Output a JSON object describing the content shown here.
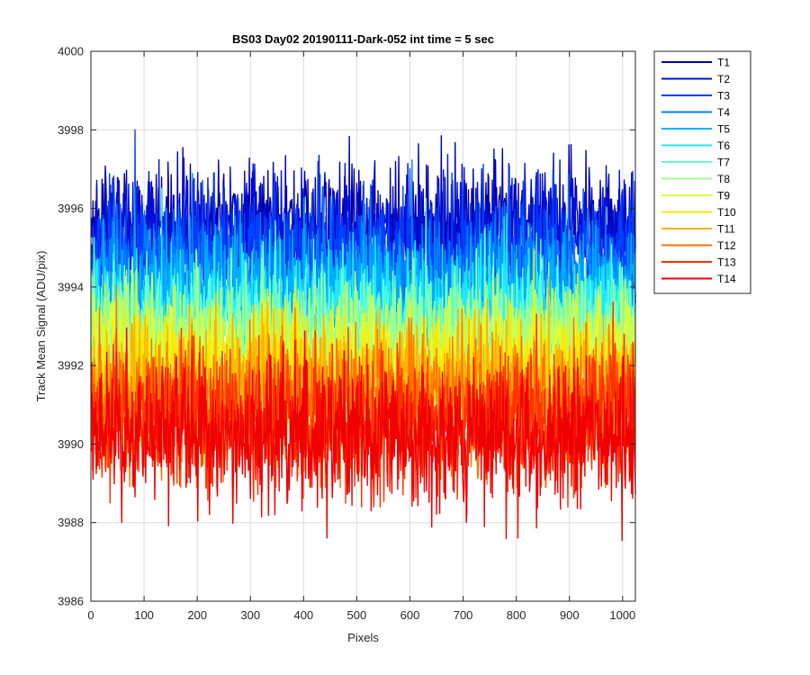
{
  "chart_data": {
    "type": "line",
    "title": "BS03 Day02 20190111-Dark-052 int time = 5 sec",
    "xlabel": "Pixels",
    "ylabel": "Track Mean Signal (ADU/pix)",
    "xlim": [
      0,
      1024
    ],
    "ylim": [
      3986,
      4000
    ],
    "xticks": [
      0,
      100,
      200,
      300,
      400,
      500,
      600,
      700,
      800,
      900,
      1000
    ],
    "yticks": [
      3986,
      3988,
      3990,
      3992,
      3994,
      3996,
      3998,
      4000
    ],
    "grid": true,
    "legend_position": "outside-top-right",
    "noise_note": "Each series is a noisy dark-frame trace over 1024 pixels; values summarized by mean and spread.",
    "series": [
      {
        "name": "T1",
        "color": "#0000b0",
        "mean": 3995.6,
        "spread": 0.75,
        "min": 3993.9,
        "max": 3999.2
      },
      {
        "name": "T2",
        "color": "#0010d8",
        "mean": 3995.3,
        "spread": 0.75,
        "min": 3993.6,
        "max": 3998.5
      },
      {
        "name": "T3",
        "color": "#0040ff",
        "mean": 3994.8,
        "spread": 0.8,
        "min": 3993.0,
        "max": 3998.0
      },
      {
        "name": "T4",
        "color": "#0080ff",
        "mean": 3994.2,
        "spread": 0.8,
        "min": 3992.4,
        "max": 3997.6
      },
      {
        "name": "T5",
        "color": "#00b0ff",
        "mean": 3993.8,
        "spread": 0.8,
        "min": 3992.0,
        "max": 3997.3
      },
      {
        "name": "T6",
        "color": "#20e8ff",
        "mean": 3993.4,
        "spread": 0.8,
        "min": 3991.6,
        "max": 3996.9
      },
      {
        "name": "T7",
        "color": "#60ffd0",
        "mean": 3993.0,
        "spread": 0.8,
        "min": 3991.2,
        "max": 3996.5
      },
      {
        "name": "T8",
        "color": "#a0ff90",
        "mean": 3992.6,
        "spread": 0.8,
        "min": 3990.8,
        "max": 3996.2
      },
      {
        "name": "T9",
        "color": "#d8ff40",
        "mean": 3992.2,
        "spread": 0.8,
        "min": 3990.3,
        "max": 3995.8
      },
      {
        "name": "T10",
        "color": "#ffe800",
        "mean": 3991.8,
        "spread": 0.85,
        "min": 3989.9,
        "max": 3995.4
      },
      {
        "name": "T11",
        "color": "#ffb000",
        "mean": 3991.4,
        "spread": 0.85,
        "min": 3989.4,
        "max": 3995.0
      },
      {
        "name": "T12",
        "color": "#ff7000",
        "mean": 3991.0,
        "spread": 0.9,
        "min": 3988.9,
        "max": 3994.5
      },
      {
        "name": "T13",
        "color": "#ff3000",
        "mean": 3990.6,
        "spread": 0.9,
        "min": 3988.4,
        "max": 3994.1
      },
      {
        "name": "T14",
        "color": "#f00000",
        "mean": 3990.2,
        "spread": 0.9,
        "min": 3986.6,
        "max": 3993.6
      }
    ]
  }
}
